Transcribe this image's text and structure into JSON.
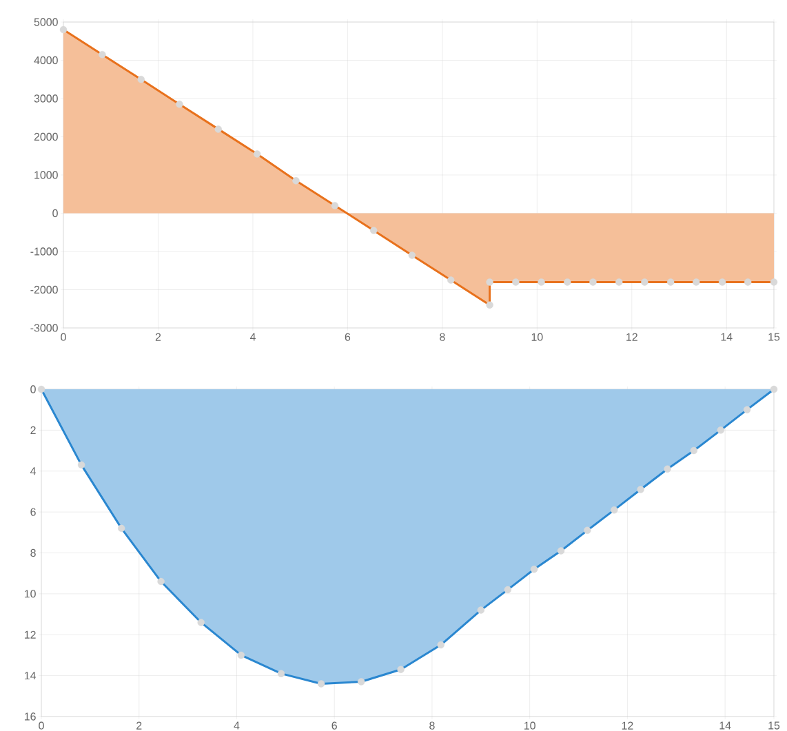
{
  "chart_data": [
    {
      "type": "area",
      "color": "#e8711c",
      "x": [
        0,
        0.82,
        1.64,
        2.45,
        3.27,
        4.09,
        4.91,
        5.73,
        6.55,
        7.36,
        8.18,
        9,
        9,
        9.55,
        10.09,
        10.64,
        11.18,
        11.73,
        12.27,
        12.82,
        13.36,
        13.91,
        14.45,
        15
      ],
      "values": [
        4800,
        4150,
        3500,
        2850,
        2200,
        1550,
        850,
        200,
        -450,
        -1100,
        -1750,
        -2400,
        -1800,
        -1800,
        -1800,
        -1800,
        -1800,
        -1800,
        -1800,
        -1800,
        -1800,
        -1800,
        -1800,
        -1800
      ],
      "xlim": [
        0,
        15
      ],
      "xticks": [
        0,
        2,
        4,
        6,
        8,
        10,
        12,
        14,
        15
      ],
      "ylim": [
        -3000,
        5000
      ],
      "yticks": [
        -3000,
        -2000,
        -1000,
        0,
        1000,
        2000,
        3000,
        4000,
        5000
      ],
      "grid": true,
      "marker": "circle"
    },
    {
      "type": "area",
      "color": "#2a87d0",
      "x": [
        0,
        0.82,
        1.64,
        2.45,
        3.27,
        4.09,
        4.91,
        5.73,
        6.55,
        7.36,
        8.18,
        9,
        9.55,
        10.09,
        10.64,
        11.18,
        11.73,
        12.27,
        12.82,
        13.36,
        13.91,
        14.45,
        15
      ],
      "values": [
        0,
        3.7,
        6.8,
        9.4,
        11.4,
        13.0,
        13.9,
        14.4,
        14.3,
        13.7,
        12.5,
        10.8,
        9.8,
        8.8,
        7.9,
        6.9,
        5.9,
        4.9,
        3.9,
        3.0,
        2.0,
        1.0,
        0
      ],
      "xlim": [
        0,
        15
      ],
      "xticks": [
        0,
        2,
        4,
        6,
        8,
        10,
        12,
        14,
        15
      ],
      "ylim": [
        16,
        0
      ],
      "yticks": [
        0,
        2,
        4,
        6,
        8,
        10,
        12,
        14,
        16
      ],
      "grid": true,
      "marker": "circle"
    }
  ]
}
